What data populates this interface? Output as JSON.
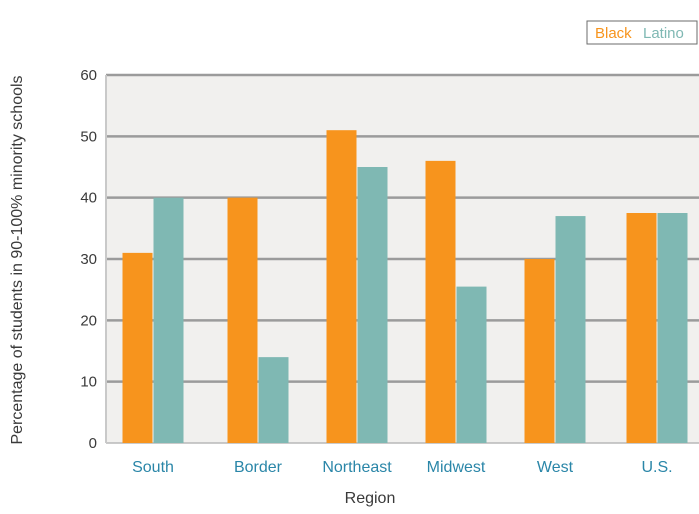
{
  "chart_data": {
    "type": "bar",
    "title": "",
    "xlabel": "Region",
    "ylabel": "Percentage of students in 90-100% minority schools",
    "ylim": [
      0,
      60
    ],
    "yticks": [
      0,
      10,
      20,
      30,
      40,
      50,
      60
    ],
    "grid": true,
    "legend_position": "top-right",
    "categories": [
      "South",
      "Border",
      "Northeast",
      "Midwest",
      "West",
      "U.S."
    ],
    "series": [
      {
        "name": "Black",
        "color": "#f7941d",
        "values": [
          31,
          40,
          51,
          46,
          30,
          37.5
        ]
      },
      {
        "name": "Latino",
        "color": "#7fb8b3",
        "values": [
          40,
          14,
          45,
          25.5,
          37,
          37.5
        ]
      }
    ],
    "colors": {
      "plot_background": "#f1f0ee",
      "gridline": "#9b9b9b",
      "category_label": "#2a86a8",
      "text": "#3a3a3a"
    }
  }
}
